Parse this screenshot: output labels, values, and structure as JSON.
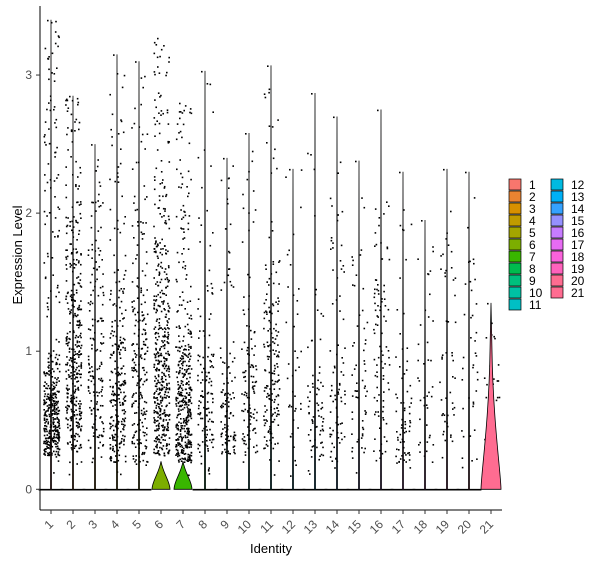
{
  "chart_data": {
    "type": "violin",
    "xlabel": "Identity",
    "ylabel": "Expression Level",
    "ylim": [
      -0.15,
      3.5
    ],
    "y_ticks": [
      0,
      1,
      2,
      3
    ],
    "grid": false,
    "legend_placement": "right",
    "legend_columns": 2,
    "categories": [
      "1",
      "2",
      "3",
      "4",
      "5",
      "6",
      "7",
      "8",
      "9",
      "10",
      "11",
      "12",
      "13",
      "14",
      "15",
      "16",
      "17",
      "18",
      "19",
      "20",
      "21"
    ],
    "colors": [
      "#F8766D",
      "#EA8331",
      "#D89000",
      "#C09B00",
      "#A3A500",
      "#7CAE00",
      "#39B600",
      "#00BB4E",
      "#00BF7D",
      "#00C1A3",
      "#00BFC4",
      "#00BAE0",
      "#00B0F6",
      "#35A2FF",
      "#9590FF",
      "#C77CFF",
      "#E76BF3",
      "#FA62DB",
      "#FF62BC",
      "#FF6C91",
      "#FF6C91"
    ],
    "series": [
      {
        "name": "1",
        "max": 3.4,
        "points": 420,
        "dense_low": 0.25,
        "dense_high": 1.1
      },
      {
        "name": "2",
        "max": 2.85,
        "points": 380,
        "dense_low": 0.3,
        "dense_high": 2.3
      },
      {
        "name": "3",
        "max": 2.5,
        "points": 160,
        "dense_low": 0.3,
        "dense_high": 2.4
      },
      {
        "name": "4",
        "max": 3.15,
        "points": 260,
        "dense_low": 0.2,
        "dense_high": 1.9
      },
      {
        "name": "5",
        "max": 3.1,
        "points": 220,
        "dense_low": 0.2,
        "dense_high": 2.1
      },
      {
        "name": "6",
        "max": 3.27,
        "points": 480,
        "dense_low": 0.25,
        "dense_high": 2.3
      },
      {
        "name": "7",
        "max": 2.8,
        "points": 420,
        "dense_low": 0.2,
        "dense_high": 1.4
      },
      {
        "name": "8",
        "max": 3.03,
        "points": 130,
        "dense_low": 0.25,
        "dense_high": 1.5
      },
      {
        "name": "9",
        "max": 2.4,
        "points": 110,
        "dense_low": 0.25,
        "dense_high": 1.0
      },
      {
        "name": "10",
        "max": 2.58,
        "points": 110,
        "dense_low": 0.25,
        "dense_high": 1.6
      },
      {
        "name": "11",
        "max": 3.07,
        "points": 170,
        "dense_low": 0.3,
        "dense_high": 2.0
      },
      {
        "name": "12",
        "max": 2.32,
        "points": 40,
        "dense_low": 0.2,
        "dense_high": 2.2
      },
      {
        "name": "13",
        "max": 2.87,
        "points": 70,
        "dense_low": 0.2,
        "dense_high": 1.2
      },
      {
        "name": "14",
        "max": 2.7,
        "points": 80,
        "dense_low": 0.2,
        "dense_high": 2.0
      },
      {
        "name": "15",
        "max": 2.38,
        "points": 60,
        "dense_low": 0.2,
        "dense_high": 1.8
      },
      {
        "name": "16",
        "max": 2.75,
        "points": 90,
        "dense_low": 0.2,
        "dense_high": 2.3
      },
      {
        "name": "17",
        "max": 2.3,
        "points": 70,
        "dense_low": 0.2,
        "dense_high": 1.2
      },
      {
        "name": "18",
        "max": 1.95,
        "points": 40,
        "dense_low": 0.2,
        "dense_high": 1.8
      },
      {
        "name": "19",
        "max": 2.32,
        "points": 50,
        "dense_low": 0.2,
        "dense_high": 2.2
      },
      {
        "name": "20",
        "max": 2.3,
        "points": 40,
        "dense_low": 0.2,
        "dense_high": 2.1
      },
      {
        "name": "21",
        "max": 1.35,
        "points": 35,
        "dense_low": 0.2,
        "dense_high": 1.3
      }
    ]
  }
}
